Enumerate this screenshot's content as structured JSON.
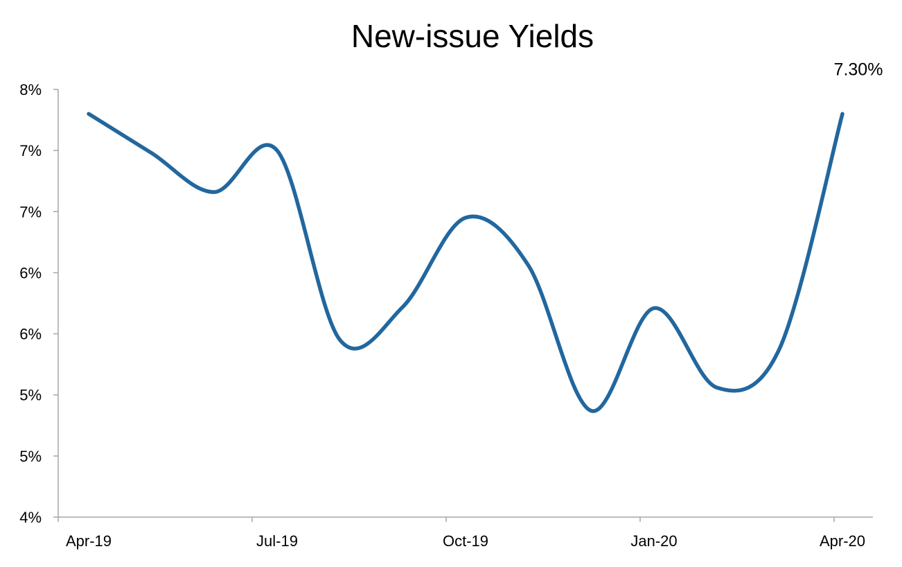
{
  "chart_data": {
    "type": "line",
    "title": "New-issue Yields",
    "xlabel": "",
    "ylabel": "",
    "x": [
      "Apr-19",
      "May-19",
      "Jun-19",
      "Jul-19",
      "Aug-19",
      "Sep-19",
      "Oct-19",
      "Nov-19",
      "Dec-19",
      "Jan-20",
      "Feb-20",
      "Mar-20",
      "Apr-20"
    ],
    "series": [
      {
        "name": "",
        "values": [
          7.3,
          6.98,
          6.66,
          7.0,
          5.45,
          5.72,
          6.45,
          6.06,
          4.87,
          5.71,
          5.06,
          5.38,
          7.3
        ]
      }
    ],
    "x_tick_labels": [
      "Apr-19",
      "Jul-19",
      "Oct-19",
      "Jan-20",
      "Apr-20"
    ],
    "y_tick_labels": [
      "4%",
      "5%",
      "5%",
      "6%",
      "6%",
      "7%",
      "7%",
      "8%"
    ],
    "ylim": [
      4.0,
      7.5
    ],
    "grid": false,
    "legend": "none",
    "data_labels": [
      {
        "index": 12,
        "text": "7.30%"
      }
    ],
    "colors": {
      "line": "#22679e",
      "axis": "#a6a6a6"
    }
  }
}
